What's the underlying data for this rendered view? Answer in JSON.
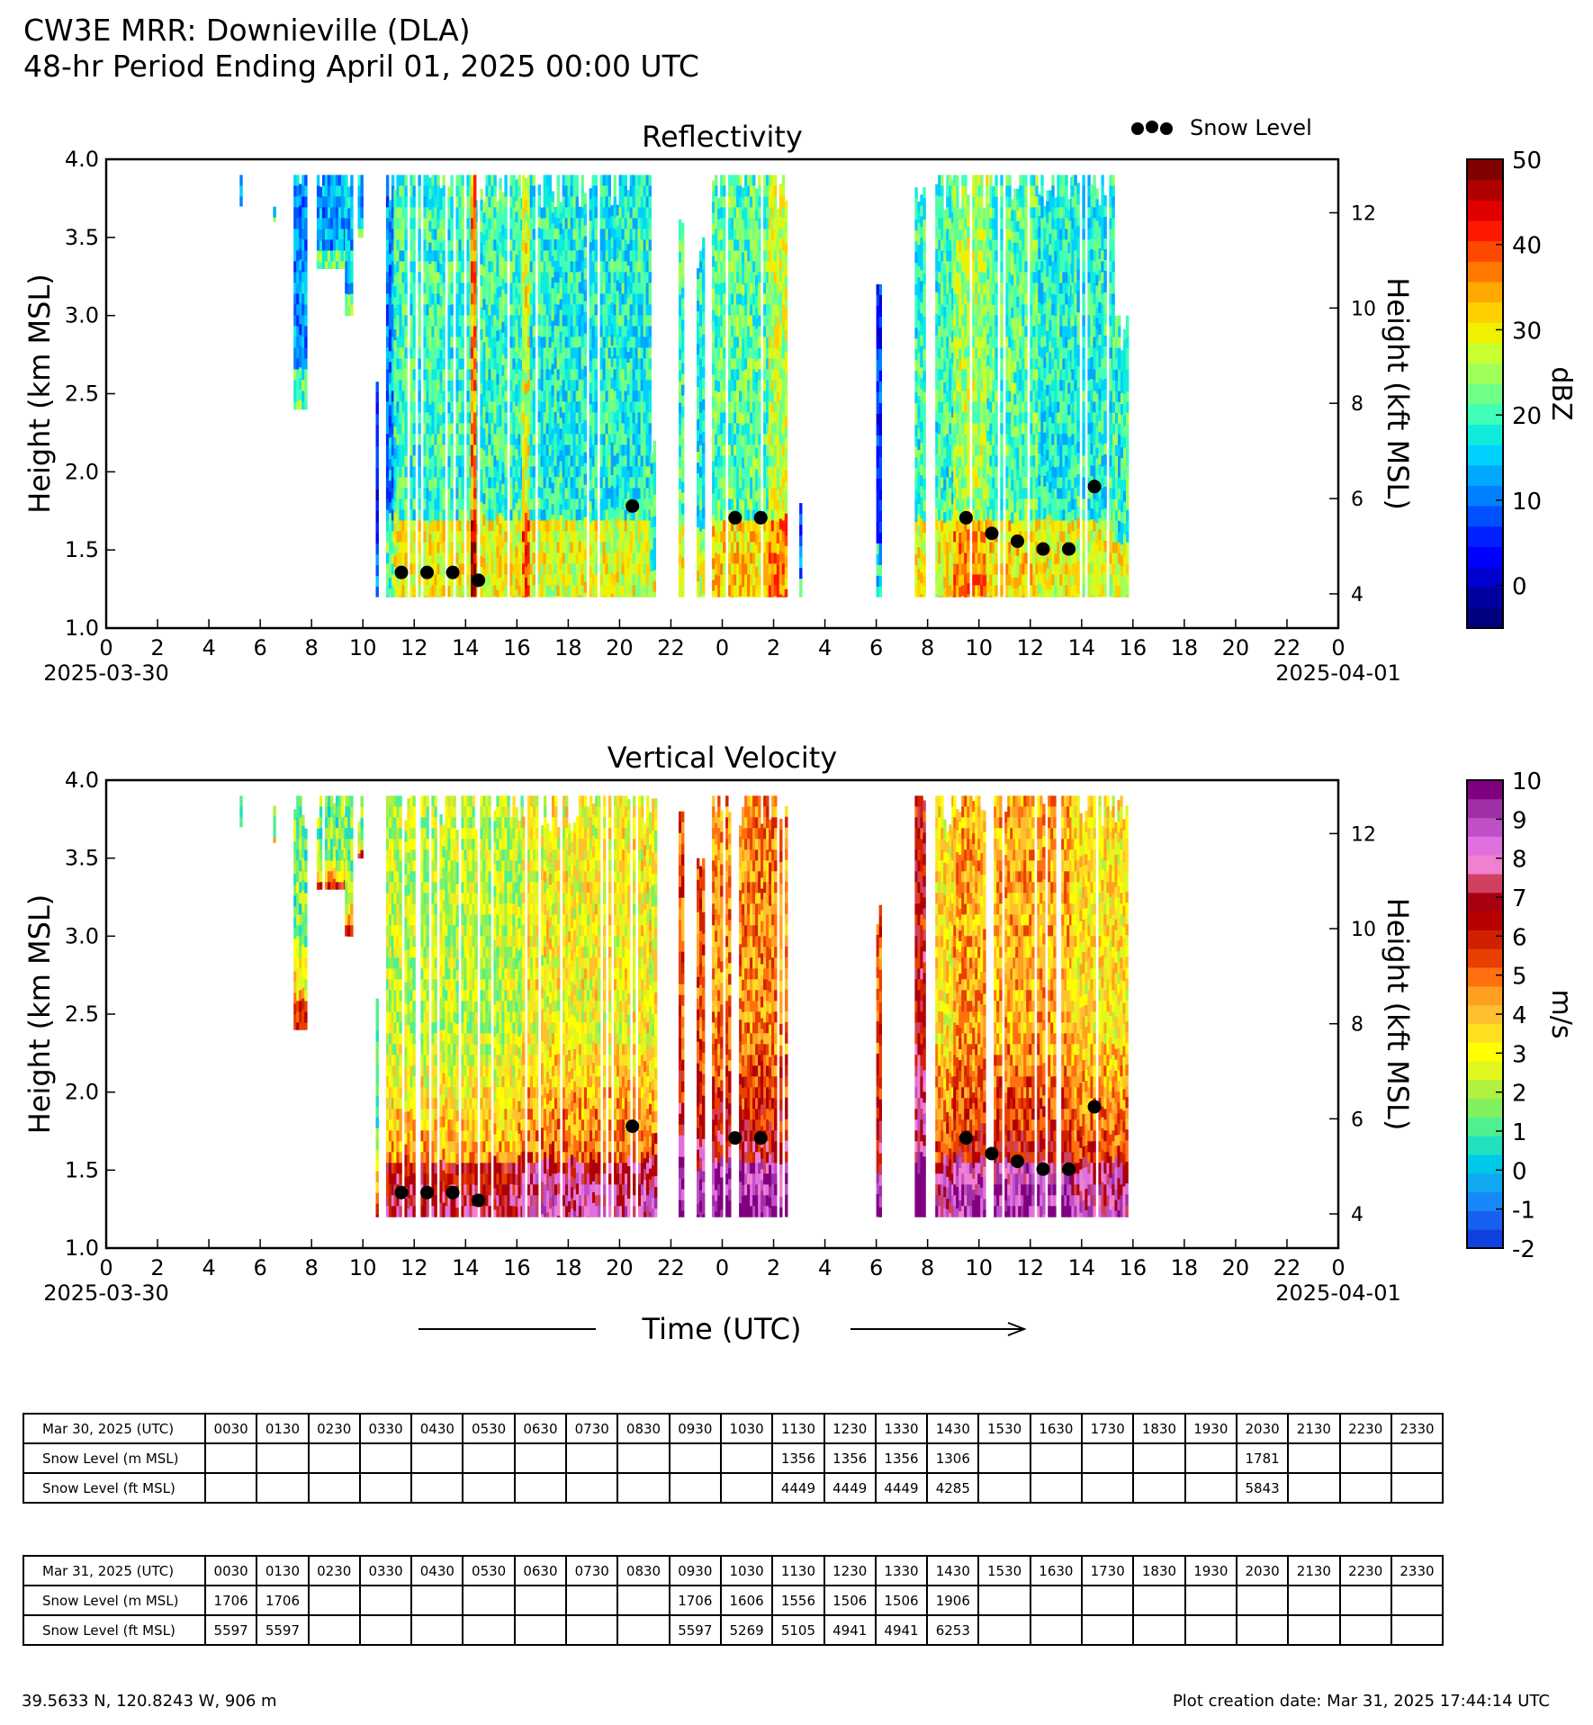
{
  "header": {
    "line1": "CW3E MRR: Downieville (DLA)",
    "line2": "48-hr Period Ending April 01, 2025 00:00 UTC"
  },
  "legend": {
    "snow_level_label": "Snow Level"
  },
  "time_label": "Time (UTC)",
  "x_ticks": [
    "0",
    "2",
    "4",
    "6",
    "8",
    "10",
    "12",
    "14",
    "16",
    "18",
    "20",
    "22",
    "0",
    "2",
    "4",
    "6",
    "8",
    "10",
    "12",
    "14",
    "16",
    "18",
    "20",
    "22",
    "0"
  ],
  "date_left": "2025-03-30",
  "date_right": "2025-04-01",
  "chart_data": [
    {
      "type": "heatmap",
      "title": "Reflectivity",
      "ylabel": "Height (km MSL)",
      "ylabel_right": "Height (kft MSL)",
      "xlabel": "Time (UTC)",
      "xlim_hours": [
        0,
        48
      ],
      "ylim_km": [
        1.0,
        4.0
      ],
      "y_ticks": [
        "1.0",
        "1.5",
        "2.0",
        "2.5",
        "3.0",
        "3.5",
        "4.0"
      ],
      "y_right_ticks": [
        "4",
        "6",
        "8",
        "10",
        "12"
      ],
      "colorbar": {
        "label": "dBZ",
        "range": [
          -5,
          50
        ],
        "ticks": [
          "0",
          "10",
          "20",
          "30",
          "40",
          "50"
        ],
        "colors": [
          "#00007f",
          "#00009f",
          "#0000cf",
          "#0000ff",
          "#0020ff",
          "#0050ff",
          "#0080ff",
          "#00a8ff",
          "#00d0ff",
          "#10ecdc",
          "#40ffb8",
          "#70ff88",
          "#a0ff58",
          "#c8ff30",
          "#f0f000",
          "#ffd000",
          "#ffa800",
          "#ff7800",
          "#ff4800",
          "#ff1800",
          "#e00000",
          "#b00000",
          "#800000"
        ]
      },
      "echo_segments": [
        {
          "start": 5.2,
          "end": 5.3,
          "base": 3.7,
          "top": 3.9,
          "intensity": 0.25
        },
        {
          "start": 6.5,
          "end": 6.6,
          "base": 3.6,
          "top": 3.9,
          "intensity": 0.3
        },
        {
          "start": 7.3,
          "end": 7.8,
          "base": 2.4,
          "top": 3.9,
          "intensity": 0.3
        },
        {
          "start": 8.2,
          "end": 9.3,
          "base": 3.3,
          "top": 3.9,
          "intensity": 0.32
        },
        {
          "start": 9.3,
          "end": 9.6,
          "base": 3.0,
          "top": 3.9,
          "intensity": 0.35
        },
        {
          "start": 9.8,
          "end": 10.0,
          "base": 3.5,
          "top": 3.9,
          "intensity": 0.35
        },
        {
          "start": 10.5,
          "end": 10.6,
          "base": 1.2,
          "top": 2.6,
          "intensity": 0.15
        },
        {
          "start": 10.9,
          "end": 11.2,
          "base": 1.2,
          "top": 3.9,
          "intensity": 0.3
        },
        {
          "start": 11.2,
          "end": 16.2,
          "base": 1.2,
          "top": 3.9,
          "intensity": 0.45
        },
        {
          "start": 14.2,
          "end": 14.4,
          "base": 1.2,
          "top": 3.9,
          "intensity": 0.75
        },
        {
          "start": 16.2,
          "end": 16.5,
          "base": 1.2,
          "top": 3.9,
          "intensity": 0.6
        },
        {
          "start": 16.5,
          "end": 21.2,
          "base": 1.2,
          "top": 3.9,
          "intensity": 0.42
        },
        {
          "start": 21.2,
          "end": 21.4,
          "base": 1.2,
          "top": 2.2,
          "intensity": 0.45
        },
        {
          "start": 22.3,
          "end": 22.5,
          "base": 1.2,
          "top": 3.8,
          "intensity": 0.45
        },
        {
          "start": 23.0,
          "end": 23.3,
          "base": 1.2,
          "top": 3.5,
          "intensity": 0.42
        },
        {
          "start": 23.6,
          "end": 25.8,
          "base": 1.2,
          "top": 3.9,
          "intensity": 0.48
        },
        {
          "start": 25.8,
          "end": 26.5,
          "base": 1.2,
          "top": 3.9,
          "intensity": 0.58
        },
        {
          "start": 27.0,
          "end": 27.1,
          "base": 1.2,
          "top": 1.8,
          "intensity": 0.25
        },
        {
          "start": 30.0,
          "end": 30.2,
          "base": 1.2,
          "top": 3.2,
          "intensity": 0.2
        },
        {
          "start": 31.5,
          "end": 31.9,
          "base": 1.2,
          "top": 3.9,
          "intensity": 0.45
        },
        {
          "start": 32.3,
          "end": 33.0,
          "base": 1.2,
          "top": 3.9,
          "intensity": 0.45
        },
        {
          "start": 33.0,
          "end": 34.3,
          "base": 1.2,
          "top": 3.9,
          "intensity": 0.55
        },
        {
          "start": 34.3,
          "end": 36.3,
          "base": 1.2,
          "top": 3.9,
          "intensity": 0.48
        },
        {
          "start": 36.3,
          "end": 37.6,
          "base": 1.2,
          "top": 3.9,
          "intensity": 0.42
        },
        {
          "start": 37.6,
          "end": 39.2,
          "base": 1.2,
          "top": 3.9,
          "intensity": 0.42
        },
        {
          "start": 39.2,
          "end": 39.8,
          "base": 1.2,
          "top": 3.0,
          "intensity": 0.45
        }
      ]
    },
    {
      "type": "heatmap",
      "title": "Vertical Velocity",
      "ylabel": "Height (km MSL)",
      "ylabel_right": "Height (kft MSL)",
      "xlabel": "Time (UTC)",
      "xlim_hours": [
        0,
        48
      ],
      "ylim_km": [
        1.0,
        4.0
      ],
      "y_ticks": [
        "1.0",
        "1.5",
        "2.0",
        "2.5",
        "3.0",
        "3.5",
        "4.0"
      ],
      "y_right_ticks": [
        "4",
        "6",
        "8",
        "10",
        "12"
      ],
      "colorbar": {
        "label": "m/s",
        "range": [
          -2,
          10
        ],
        "ticks": [
          "-2",
          "-1",
          "0",
          "1",
          "2",
          "3",
          "4",
          "5",
          "6",
          "7",
          "8",
          "9",
          "10"
        ],
        "colors": [
          "#1040e0",
          "#1860f0",
          "#1888f8",
          "#10a8f0",
          "#00c8e8",
          "#20e0c0",
          "#50f090",
          "#80f060",
          "#b0f040",
          "#e0f820",
          "#ffff00",
          "#ffe020",
          "#ffc030",
          "#ffa020",
          "#ff7010",
          "#e84000",
          "#d02000",
          "#b80000",
          "#a80010",
          "#d04060",
          "#f080d0",
          "#e070e0",
          "#c050c8",
          "#a030a8",
          "#800080"
        ]
      },
      "echo_segments": [
        {
          "start": 5.2,
          "end": 5.3,
          "base": 3.7,
          "top": 3.9,
          "intensity": 0.28
        },
        {
          "start": 6.5,
          "end": 6.6,
          "base": 3.6,
          "top": 3.9,
          "intensity": 0.28
        },
        {
          "start": 7.3,
          "end": 7.8,
          "base": 2.4,
          "top": 3.9,
          "intensity": 0.3
        },
        {
          "start": 8.2,
          "end": 9.3,
          "base": 3.3,
          "top": 3.9,
          "intensity": 0.3
        },
        {
          "start": 9.3,
          "end": 9.6,
          "base": 3.0,
          "top": 3.9,
          "intensity": 0.3
        },
        {
          "start": 9.8,
          "end": 10.0,
          "base": 3.5,
          "top": 3.9,
          "intensity": 0.3
        },
        {
          "start": 10.5,
          "end": 10.6,
          "base": 1.2,
          "top": 2.6,
          "intensity": 0.3
        },
        {
          "start": 10.9,
          "end": 11.2,
          "base": 1.2,
          "top": 3.9,
          "intensity": 0.35
        },
        {
          "start": 11.2,
          "end": 16.2,
          "base": 1.2,
          "top": 3.9,
          "intensity": 0.35
        },
        {
          "start": 16.2,
          "end": 21.4,
          "base": 1.2,
          "top": 3.9,
          "intensity": 0.42
        },
        {
          "start": 22.3,
          "end": 22.5,
          "base": 1.2,
          "top": 3.8,
          "intensity": 0.6
        },
        {
          "start": 23.0,
          "end": 23.3,
          "base": 1.2,
          "top": 3.5,
          "intensity": 0.6
        },
        {
          "start": 23.6,
          "end": 26.5,
          "base": 1.2,
          "top": 3.9,
          "intensity": 0.55
        },
        {
          "start": 30.0,
          "end": 30.2,
          "base": 1.2,
          "top": 3.2,
          "intensity": 0.6
        },
        {
          "start": 31.5,
          "end": 31.9,
          "base": 1.2,
          "top": 3.9,
          "intensity": 0.7
        },
        {
          "start": 32.3,
          "end": 33.0,
          "base": 1.2,
          "top": 3.9,
          "intensity": 0.45
        },
        {
          "start": 33.0,
          "end": 37.6,
          "base": 1.2,
          "top": 3.9,
          "intensity": 0.52
        },
        {
          "start": 37.6,
          "end": 39.8,
          "base": 1.2,
          "top": 3.9,
          "intensity": 0.45
        }
      ]
    }
  ],
  "snow_level_points": [
    {
      "hour": 11.5,
      "km": 1.356
    },
    {
      "hour": 12.5,
      "km": 1.356
    },
    {
      "hour": 13.5,
      "km": 1.356
    },
    {
      "hour": 14.5,
      "km": 1.306
    },
    {
      "hour": 20.5,
      "km": 1.781
    },
    {
      "hour": 24.5,
      "km": 1.706
    },
    {
      "hour": 25.5,
      "km": 1.706
    },
    {
      "hour": 33.5,
      "km": 1.706
    },
    {
      "hour": 34.5,
      "km": 1.606
    },
    {
      "hour": 35.5,
      "km": 1.556
    },
    {
      "hour": 36.5,
      "km": 1.506
    },
    {
      "hour": 37.5,
      "km": 1.506
    },
    {
      "hour": 38.5,
      "km": 1.906
    }
  ],
  "tables": [
    {
      "header": "Mar 30, 2025 (UTC)",
      "times": [
        "0030",
        "0130",
        "0230",
        "0330",
        "0430",
        "0530",
        "0630",
        "0730",
        "0830",
        "0930",
        "1030",
        "1130",
        "1230",
        "1330",
        "1430",
        "1530",
        "1630",
        "1730",
        "1830",
        "1930",
        "2030",
        "2130",
        "2230",
        "2330"
      ],
      "rows": [
        {
          "label": "Snow Level (m MSL)",
          "values": [
            "",
            "",
            "",
            "",
            "",
            "",
            "",
            "",
            "",
            "",
            "",
            "1356",
            "1356",
            "1356",
            "1306",
            "",
            "",
            "",
            "",
            "",
            "1781",
            "",
            "",
            ""
          ]
        },
        {
          "label": "Snow Level (ft MSL)",
          "values": [
            "",
            "",
            "",
            "",
            "",
            "",
            "",
            "",
            "",
            "",
            "",
            "4449",
            "4449",
            "4449",
            "4285",
            "",
            "",
            "",
            "",
            "",
            "5843",
            "",
            "",
            ""
          ]
        }
      ]
    },
    {
      "header": "Mar 31, 2025 (UTC)",
      "times": [
        "0030",
        "0130",
        "0230",
        "0330",
        "0430",
        "0530",
        "0630",
        "0730",
        "0830",
        "0930",
        "1030",
        "1130",
        "1230",
        "1330",
        "1430",
        "1530",
        "1630",
        "1730",
        "1830",
        "1930",
        "2030",
        "2130",
        "2230",
        "2330"
      ],
      "rows": [
        {
          "label": "Snow Level (m MSL)",
          "values": [
            "1706",
            "1706",
            "",
            "",
            "",
            "",
            "",
            "",
            "",
            "1706",
            "1606",
            "1556",
            "1506",
            "1506",
            "1906",
            "",
            "",
            "",
            "",
            "",
            "",
            "",
            "",
            ""
          ]
        },
        {
          "label": "Snow Level (ft MSL)",
          "values": [
            "5597",
            "5597",
            "",
            "",
            "",
            "",
            "",
            "",
            "",
            "5597",
            "5269",
            "5105",
            "4941",
            "4941",
            "6253",
            "",
            "",
            "",
            "",
            "",
            "",
            "",
            "",
            ""
          ]
        }
      ]
    }
  ],
  "footer": {
    "location": "39.5633 N, 120.8243 W, 906 m",
    "creation": "Plot creation date: Mar 31, 2025 17:44:14 UTC"
  }
}
